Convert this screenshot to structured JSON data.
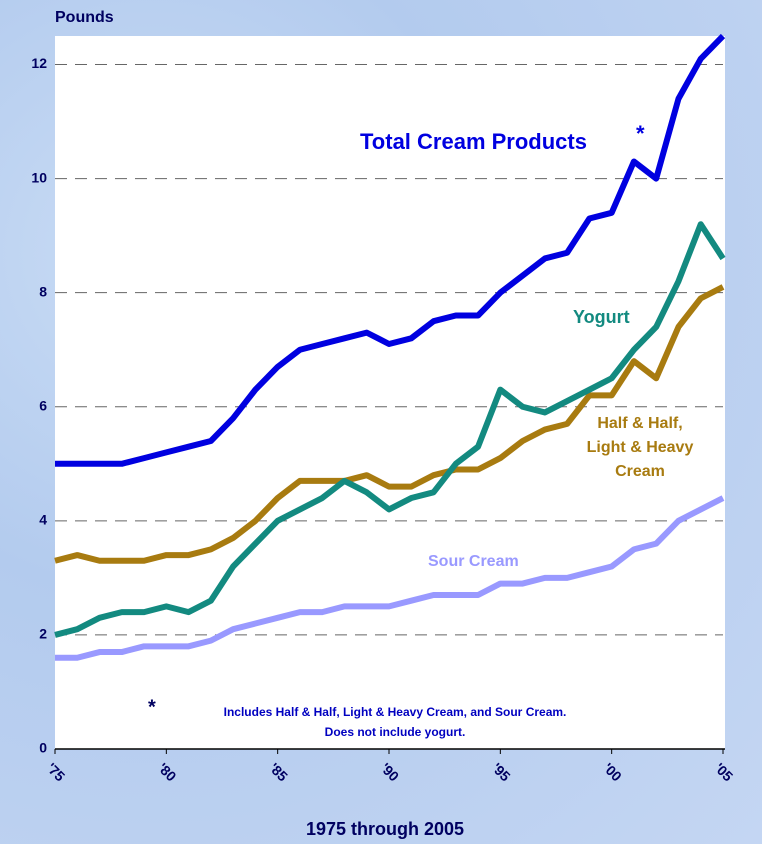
{
  "chart_data": {
    "type": "line",
    "y_label": "Pounds",
    "x_label": "1975 through 2005",
    "annotations": [
      "*",
      "*",
      "Includes Half & Half, Light & Heavy Cream, and Sour Cream.",
      "Does not include yogurt."
    ],
    "x": [
      1975,
      1976,
      1977,
      1978,
      1979,
      1980,
      1981,
      1982,
      1983,
      1984,
      1985,
      1986,
      1987,
      1988,
      1989,
      1990,
      1991,
      1992,
      1993,
      1994,
      1995,
      1996,
      1997,
      1998,
      1999,
      2000,
      2001,
      2002,
      2003,
      2004,
      2005
    ],
    "series": [
      {
        "name": "Total Cream Products",
        "color": "#0000e0",
        "values": [
          5.0,
          5.0,
          5.0,
          5.0,
          5.1,
          5.2,
          5.3,
          5.4,
          5.8,
          6.3,
          6.7,
          7.0,
          7.1,
          7.2,
          7.3,
          7.1,
          7.2,
          7.5,
          7.6,
          7.6,
          8.0,
          8.3,
          8.6,
          8.7,
          9.3,
          9.4,
          10.3,
          10.0,
          11.4,
          12.1,
          12.5
        ]
      },
      {
        "name": "Half & Half, Light & Heavy Cream",
        "color": "#a87b10",
        "values": [
          3.3,
          3.4,
          3.3,
          3.3,
          3.3,
          3.4,
          3.4,
          3.5,
          3.7,
          4.0,
          4.4,
          4.7,
          4.7,
          4.7,
          4.8,
          4.6,
          4.6,
          4.8,
          4.9,
          4.9,
          5.1,
          5.4,
          5.6,
          5.7,
          6.2,
          6.2,
          6.8,
          6.5,
          7.4,
          7.9,
          8.1
        ]
      },
      {
        "name": "Sour Cream",
        "color": "#9999ff",
        "values": [
          1.6,
          1.6,
          1.7,
          1.7,
          1.8,
          1.8,
          1.8,
          1.9,
          2.1,
          2.2,
          2.3,
          2.4,
          2.4,
          2.5,
          2.5,
          2.5,
          2.6,
          2.7,
          2.7,
          2.7,
          2.9,
          2.9,
          3.0,
          3.0,
          3.1,
          3.2,
          3.5,
          3.6,
          4.0,
          4.2,
          4.4
        ]
      },
      {
        "name": "Yogurt",
        "color": "#138a80",
        "values": [
          2.0,
          2.1,
          2.3,
          2.4,
          2.4,
          2.5,
          2.4,
          2.6,
          3.2,
          3.6,
          4.0,
          4.2,
          4.4,
          4.7,
          4.5,
          4.2,
          4.4,
          4.5,
          5.0,
          5.3,
          6.3,
          6.0,
          5.9,
          6.1,
          6.3,
          6.5,
          7.0,
          7.4,
          8.2,
          9.2,
          8.6
        ]
      }
    ],
    "xlim": [
      1975,
      2005
    ],
    "xticks": [
      {
        "value": 1975,
        "label": "'75"
      },
      {
        "value": 1980,
        "label": "'80"
      },
      {
        "value": 1985,
        "label": "'85"
      },
      {
        "value": 1990,
        "label": "'90"
      },
      {
        "value": 1995,
        "label": "'95"
      },
      {
        "value": 2000,
        "label": "'00"
      },
      {
        "value": 2005,
        "label": "'05"
      }
    ],
    "ylim": [
      0,
      12.5
    ],
    "yticks": [
      0,
      2,
      4,
      6,
      8,
      10,
      12
    ],
    "grid": true
  }
}
